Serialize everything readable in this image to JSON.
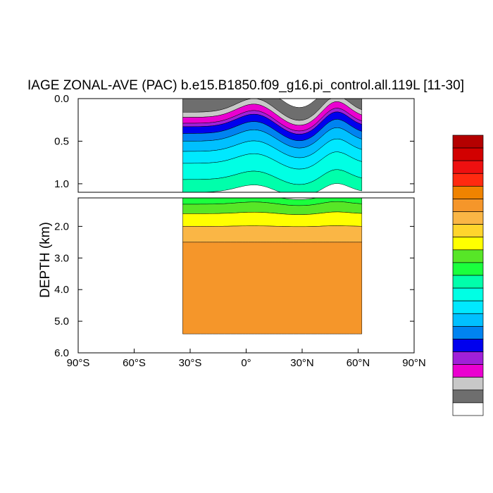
{
  "chart_data": {
    "type": "filled-contour",
    "title": "IAGE ZONAL-AVE (PAC) b.e15.B1850.f09_g16.pi_control.all.119L [11-30]",
    "ylabel": "DEPTH (km)",
    "xlim": [
      -90,
      90
    ],
    "ylim": [
      0,
      6
    ],
    "y_axis_break_km": 1.1,
    "data_extent": {
      "lat_min": -34,
      "lat_max": 62,
      "bottom_depth_km": 5.4
    },
    "x_ticks": [
      {
        "value": -90,
        "label": "90°S"
      },
      {
        "value": -60,
        "label": "60°S"
      },
      {
        "value": -30,
        "label": "30°S"
      },
      {
        "value": 0,
        "label": "0°"
      },
      {
        "value": 30,
        "label": "30°N"
      },
      {
        "value": 60,
        "label": "60°N"
      },
      {
        "value": 90,
        "label": "90°N"
      }
    ],
    "y_ticks_upper": [
      {
        "value": 0.0,
        "label": "0.0"
      },
      {
        "value": 0.5,
        "label": "0.5"
      },
      {
        "value": 1.0,
        "label": "1.0"
      }
    ],
    "y_ticks_lower": [
      {
        "value": 2.0,
        "label": "2.0"
      },
      {
        "value": 3.0,
        "label": "3.0"
      },
      {
        "value": 4.0,
        "label": "4.0"
      },
      {
        "value": 5.0,
        "label": "5.0"
      },
      {
        "value": 6.0,
        "label": "6.0"
      }
    ],
    "colorbar_colors": [
      "#b40000",
      "#d20000",
      "#ee1010",
      "#ff2a10",
      "#f08300",
      "#f5962a",
      "#fab645",
      "#ffd52c",
      "#ffff00",
      "#57e627",
      "#1aff3d",
      "#00ffab",
      "#00ffe4",
      "#00e8ff",
      "#00c0ff",
      "#0083f0",
      "#0000ee",
      "#a020d8",
      "#ea00d0",
      "#c8c8c8",
      "#6e6e6e",
      "#ffffff"
    ],
    "contour_bands": [
      {
        "color": "#6e6e6e",
        "depth_top": 0.0,
        "depth_bottom": 0.16
      },
      {
        "color": "#c8c8c8",
        "depth_top": 0.16,
        "depth_bottom": 0.22
      },
      {
        "color": "#ea00d0",
        "depth_top": 0.22,
        "depth_bottom": 0.29
      },
      {
        "color": "#a020d8",
        "depth_top": 0.29,
        "depth_bottom": 0.33
      },
      {
        "color": "#0000ee",
        "depth_top": 0.33,
        "depth_bottom": 0.41
      },
      {
        "color": "#0083f0",
        "depth_top": 0.41,
        "depth_bottom": 0.5
      },
      {
        "color": "#00c0ff",
        "depth_top": 0.5,
        "depth_bottom": 0.62
      },
      {
        "color": "#00e8ff",
        "depth_top": 0.62,
        "depth_bottom": 0.76
      },
      {
        "color": "#00ffe4",
        "depth_top": 0.76,
        "depth_bottom": 0.95
      },
      {
        "color": "#00ffab",
        "depth_top": 0.95,
        "depth_bottom": 1.1
      },
      {
        "color": "#1aff3d",
        "depth_top": 1.1,
        "depth_bottom": 1.3
      },
      {
        "color": "#57e627",
        "depth_top": 1.3,
        "depth_bottom": 1.6
      },
      {
        "color": "#ffff00",
        "depth_top": 1.6,
        "depth_bottom": 2.0
      },
      {
        "color": "#fab645",
        "depth_top": 2.0,
        "depth_bottom": 2.5
      },
      {
        "color": "#f5962a",
        "depth_top": 2.5,
        "depth_bottom": 5.4
      }
    ]
  }
}
